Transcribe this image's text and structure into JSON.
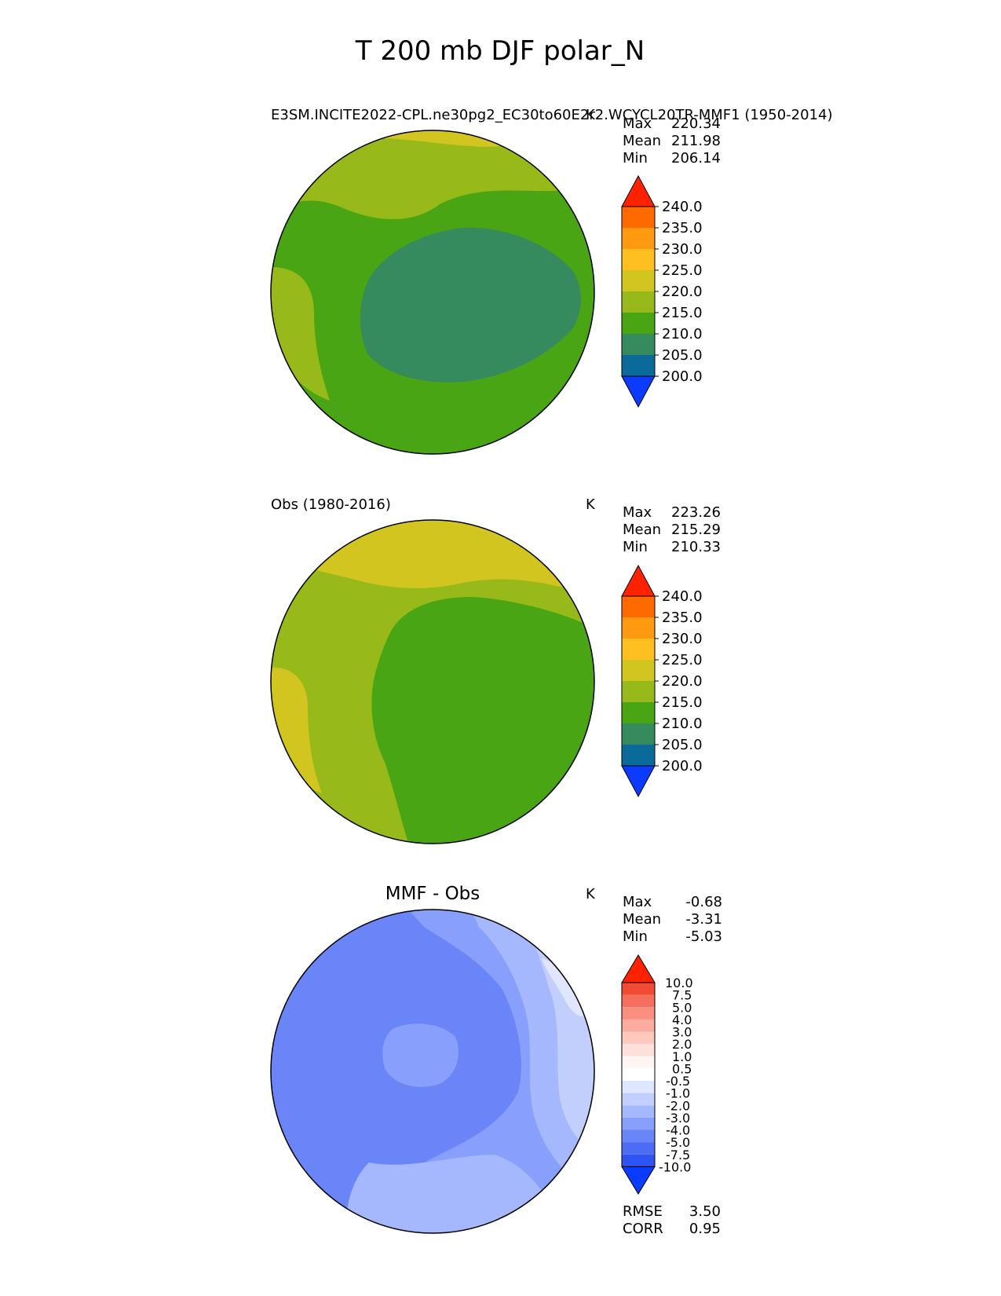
{
  "title": "T 200 mb DJF polar_N",
  "panels": [
    {
      "id": "test",
      "title_left": "E3SM.INCITE2022-CPL.ne30pg2_EC30to60E2r2.WCYCL20TR-MMF1 (1950-2014)",
      "title_center": "",
      "units": "K",
      "stats": [
        {
          "label": "Max",
          "value": "220.34"
        },
        {
          "label": "Mean",
          "value": "211.98"
        },
        {
          "label": "Min",
          "value": "206.14"
        }
      ],
      "colorbar": {
        "levels": [
          "240.0",
          "235.0",
          "230.0",
          "225.0",
          "220.0",
          "215.0",
          "210.0",
          "205.0",
          "200.0"
        ],
        "colors": [
          "#ff2200",
          "#ff6a00",
          "#ff9a10",
          "#fdc020",
          "#d3c520",
          "#97ba1a",
          "#4aa515",
          "#358a5e",
          "#0a6a9a",
          "#0a3bff"
        ]
      },
      "field_note": "base #4aa515; cold core #358a5e over central Arctic; warm band #97ba1a toward Pacific/N America"
    },
    {
      "id": "reference",
      "title_left": "Obs (1980-2016)",
      "title_center": "",
      "units": "K",
      "stats": [
        {
          "label": "Max",
          "value": "223.26"
        },
        {
          "label": "Mean",
          "value": "215.29"
        },
        {
          "label": "Min",
          "value": "210.33"
        }
      ],
      "colorbar": {
        "levels": [
          "240.0",
          "235.0",
          "230.0",
          "225.0",
          "220.0",
          "215.0",
          "210.0",
          "205.0",
          "200.0"
        ],
        "colors": [
          "#ff2200",
          "#ff6a00",
          "#ff9a10",
          "#fdc020",
          "#d3c520",
          "#97ba1a",
          "#4aa515",
          "#358a5e",
          "#0a6a9a",
          "#0a3bff"
        ]
      },
      "field_note": "base #97ba1a; cooler #4aa515 over Eurasia/Arctic; warm #d3c520 near Pacific/N Atlantic"
    },
    {
      "id": "diff",
      "title_left": "",
      "title_center": "MMF - Obs",
      "units": "K",
      "stats": [
        {
          "label": "Max",
          "value": "-0.68"
        },
        {
          "label": "Mean",
          "value": "-3.31"
        },
        {
          "label": "Min",
          "value": "-5.03"
        }
      ],
      "colorbar": {
        "levels": [
          "10.0",
          "7.5",
          "5.0",
          "4.0",
          "3.0",
          "2.0",
          "1.0",
          "0.5",
          "-0.5",
          "-1.0",
          "-2.0",
          "-3.0",
          "-4.0",
          "-5.0",
          "-7.5",
          "-10.0"
        ],
        "colors": [
          "#ff2200",
          "#f24b34",
          "#f66f5e",
          "#fa8f80",
          "#fcac9f",
          "#fec8bf",
          "#fee0da",
          "#fff6f4",
          "#ffffff",
          "#dfe6fe",
          "#c2cffd",
          "#a5b8fd",
          "#889ffb",
          "#6a85f8",
          "#4d6cf3",
          "#3053f3",
          "#0a3bff"
        ]
      },
      "metrics": [
        {
          "label": "RMSE",
          "value": "3.50"
        },
        {
          "label": "CORR",
          "value": "0.95"
        }
      ],
      "field_note": "base #6a85f8; central #889ffb; Pacific side #a5b8fd / #c2cffd; near-zero #dfe6fe at edge"
    }
  ]
}
